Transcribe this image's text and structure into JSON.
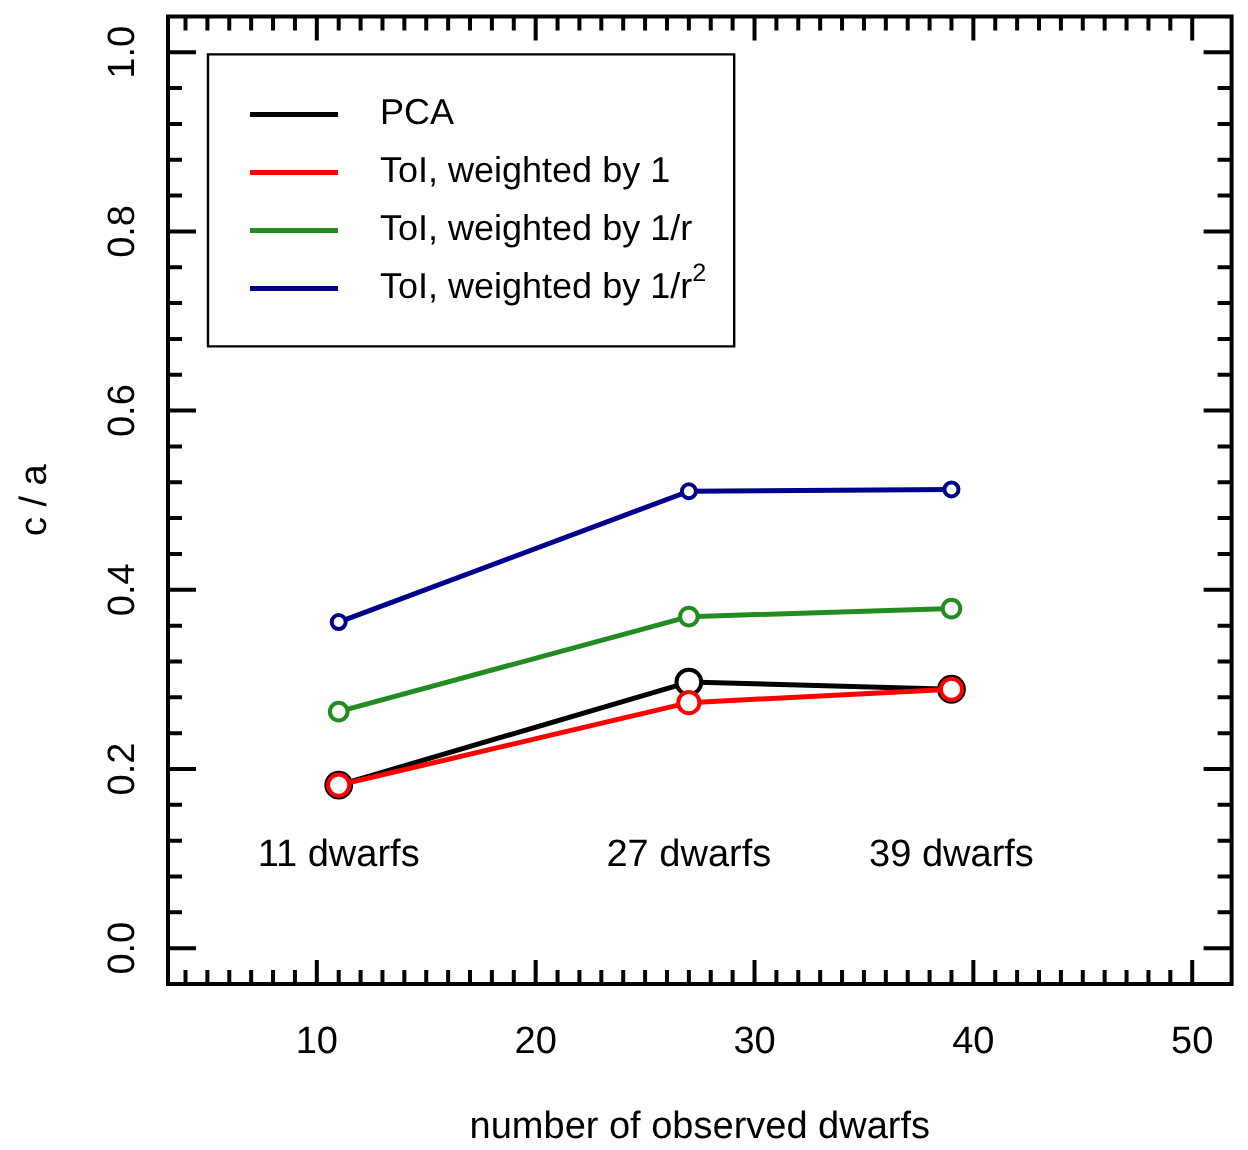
{
  "chart_data": {
    "type": "line",
    "xlabel": "number of observed dwarfs",
    "ylabel": "c / a",
    "x": [
      11,
      27,
      39
    ],
    "series": [
      {
        "name": "PCA",
        "color": "#000000",
        "values": [
          0.182,
          0.297,
          0.289
        ]
      },
      {
        "name": "ToI, weighted by 1",
        "color": "#ff0000",
        "values": [
          0.182,
          0.274,
          0.289
        ]
      },
      {
        "name": "ToI, weighted by 1/r",
        "color": "#228b22",
        "values": [
          0.264,
          0.37,
          0.379
        ]
      },
      {
        "name": "ToI, weighted by 1/r$^{2}$",
        "color": "#00008b",
        "values": [
          0.364,
          0.51,
          0.512
        ]
      }
    ],
    "xlim": [
      3.2,
      51.8
    ],
    "ylim": [
      -0.04,
      1.04
    ],
    "xticks": [
      {
        "value": 4,
        "label": null
      },
      {
        "value": 5,
        "label": null
      },
      {
        "value": 6,
        "label": null
      },
      {
        "value": 7,
        "label": null
      },
      {
        "value": 8,
        "label": null
      },
      {
        "value": 9,
        "label": null
      },
      10,
      {
        "value": 11,
        "label": null
      },
      {
        "value": 12,
        "label": null
      },
      {
        "value": 13,
        "label": null
      },
      {
        "value": 14,
        "label": null
      },
      {
        "value": 15,
        "label": null
      },
      {
        "value": 16,
        "label": null
      },
      {
        "value": 17,
        "label": null
      },
      {
        "value": 18,
        "label": null
      },
      {
        "value": 19,
        "label": null
      },
      20,
      {
        "value": 21,
        "label": null
      },
      {
        "value": 22,
        "label": null
      },
      {
        "value": 23,
        "label": null
      },
      {
        "value": 24,
        "label": null
      },
      {
        "value": 25,
        "label": null
      },
      {
        "value": 26,
        "label": null
      },
      {
        "value": 27,
        "label": null
      },
      {
        "value": 28,
        "label": null
      },
      {
        "value": 29,
        "label": null
      },
      30,
      {
        "value": 31,
        "label": null
      },
      {
        "value": 32,
        "label": null
      },
      {
        "value": 33,
        "label": null
      },
      {
        "value": 34,
        "label": null
      },
      {
        "value": 35,
        "label": null
      },
      {
        "value": 36,
        "label": null
      },
      {
        "value": 37,
        "label": null
      },
      {
        "value": 38,
        "label": null
      },
      {
        "value": 39,
        "label": null
      },
      40,
      {
        "value": 41,
        "label": null
      },
      {
        "value": 42,
        "label": null
      },
      {
        "value": 43,
        "label": null
      },
      {
        "value": 44,
        "label": null
      },
      {
        "value": 45,
        "label": null
      },
      {
        "value": 46,
        "label": null
      },
      {
        "value": 47,
        "label": null
      },
      {
        "value": 48,
        "label": null
      },
      {
        "value": 49,
        "label": null
      },
      50
    ],
    "yticks": [
      {
        "value": 0,
        "label": "0.0"
      },
      {
        "value": 0.04,
        "label": null
      },
      {
        "value": 0.08,
        "label": null
      },
      {
        "value": 0.12,
        "label": null
      },
      {
        "value": 0.16,
        "label": null
      },
      {
        "value": 0.2,
        "label": "0.2"
      },
      {
        "value": 0.24,
        "label": null
      },
      {
        "value": 0.28,
        "label": null
      },
      {
        "value": 0.32,
        "label": null
      },
      {
        "value": 0.36,
        "label": null
      },
      {
        "value": 0.4,
        "label": "0.4"
      },
      {
        "value": 0.44,
        "label": null
      },
      {
        "value": 0.48,
        "label": null
      },
      {
        "value": 0.52,
        "label": null
      },
      {
        "value": 0.56,
        "label": null
      },
      {
        "value": 0.6,
        "label": "0.6"
      },
      {
        "value": 0.64,
        "label": null
      },
      {
        "value": 0.68,
        "label": null
      },
      {
        "value": 0.72,
        "label": null
      },
      {
        "value": 0.76,
        "label": null
      },
      {
        "value": 0.8,
        "label": "0.8"
      },
      {
        "value": 0.84,
        "label": null
      },
      {
        "value": 0.88,
        "label": null
      },
      {
        "value": 0.92,
        "label": null
      },
      {
        "value": 0.96,
        "label": null
      },
      {
        "value": 1,
        "label": "1.0"
      }
    ],
    "annotations": [
      "11 dwarfs",
      "27 dwarfs",
      "39 dwarfs"
    ],
    "legend": "top left",
    "marker": "circle",
    "line_style": "solid"
  }
}
